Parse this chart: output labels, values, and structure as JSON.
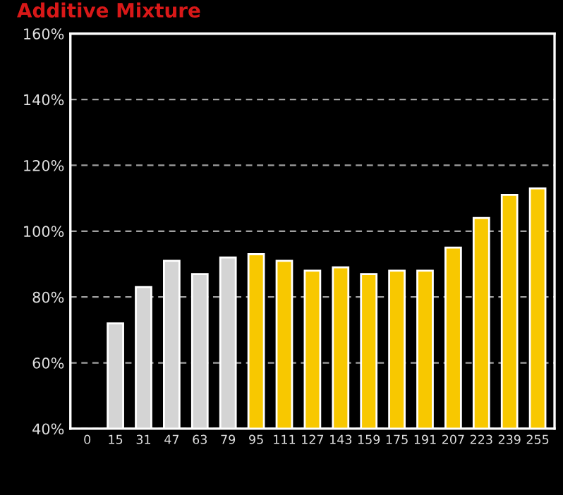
{
  "chart_data": {
    "type": "bar",
    "title": "Additive Mixture",
    "categories": [
      "0",
      "15",
      "31",
      "47",
      "63",
      "79",
      "95",
      "111",
      "127",
      "143",
      "159",
      "175",
      "191",
      "207",
      "223",
      "239",
      "255"
    ],
    "values": [
      null,
      72,
      83,
      91,
      87,
      92,
      93,
      91,
      88,
      89,
      87,
      88,
      88,
      95,
      104,
      111,
      113
    ],
    "colors": [
      "#d4d4d4",
      "#d4d4d4",
      "#d4d4d4",
      "#d4d4d4",
      "#d4d4d4",
      "#d4d4d4",
      "#f8c800",
      "#f8c800",
      "#f8c800",
      "#f8c800",
      "#f8c800",
      "#f8c800",
      "#f8c800",
      "#f8c800",
      "#f8c800",
      "#f8c800",
      "#f8c800"
    ],
    "ylim": [
      40,
      160
    ],
    "yticks": [
      {
        "value": 40,
        "label": "40%"
      },
      {
        "value": 60,
        "label": "60%"
      },
      {
        "value": 80,
        "label": "80%"
      },
      {
        "value": 100,
        "label": "100%"
      },
      {
        "value": 120,
        "label": "120%"
      },
      {
        "value": 140,
        "label": "140%"
      },
      {
        "value": 160,
        "label": "160%"
      }
    ],
    "grid": "y"
  }
}
